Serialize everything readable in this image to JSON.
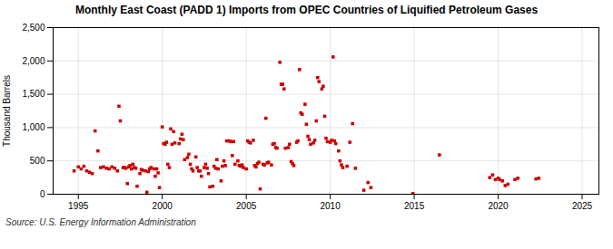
{
  "chart_data": {
    "type": "scatter",
    "title": "Monthly East Coast (PADD 1) Imports from OPEC Countries of Liquified Petroleum Gases",
    "ylabel": "Thousand Barrels",
    "annotation": "Source: U.S. Energy Information Administration",
    "color": "#cc0000",
    "marker": "square",
    "grid": true,
    "xlim": [
      1993.5,
      2026
    ],
    "xticks": [
      1995,
      2000,
      2005,
      2010,
      2015,
      2020,
      2025
    ],
    "ylim": [
      0,
      2500
    ],
    "yticks": [
      0,
      500,
      {
        "value": 1000,
        "label": "1,000"
      },
      {
        "value": 1500,
        "label": "1,500"
      },
      {
        "value": 2000,
        "label": "2,000"
      },
      {
        "value": 2500,
        "label": "2,500"
      }
    ],
    "x": [
      1994.75,
      1995.0,
      1995.17,
      1995.33,
      1995.5,
      1995.67,
      1995.83,
      1996.0,
      1996.17,
      1996.33,
      1996.5,
      1996.67,
      1996.83,
      1997.0,
      1997.17,
      1997.33,
      1997.42,
      1997.5,
      1997.67,
      1997.75,
      1997.83,
      1997.92,
      1998.0,
      1998.08,
      1998.17,
      1998.25,
      1998.33,
      1998.42,
      1998.5,
      1998.67,
      1998.75,
      1998.83,
      1999.0,
      1999.08,
      1999.17,
      1999.25,
      1999.33,
      1999.5,
      1999.58,
      1999.67,
      1999.75,
      1999.83,
      2000.0,
      2000.08,
      2000.17,
      2000.25,
      2000.33,
      2000.42,
      2000.5,
      2000.58,
      2000.67,
      2000.75,
      2001.0,
      2001.08,
      2001.17,
      2001.25,
      2001.33,
      2001.5,
      2001.58,
      2001.67,
      2001.75,
      2001.83,
      2002.0,
      2002.08,
      2002.17,
      2002.25,
      2002.33,
      2002.5,
      2002.58,
      2002.67,
      2002.75,
      2002.83,
      2003.0,
      2003.08,
      2003.17,
      2003.25,
      2003.33,
      2003.5,
      2003.58,
      2003.67,
      2003.75,
      2003.83,
      2004.0,
      2004.08,
      2004.17,
      2004.25,
      2004.33,
      2004.5,
      2004.58,
      2004.67,
      2004.75,
      2004.83,
      2005.0,
      2005.08,
      2005.17,
      2005.25,
      2005.42,
      2005.5,
      2005.58,
      2005.67,
      2005.75,
      2005.83,
      2006.0,
      2006.08,
      2006.17,
      2006.25,
      2006.33,
      2006.5,
      2006.58,
      2006.67,
      2006.75,
      2006.83,
      2007.0,
      2007.08,
      2007.17,
      2007.25,
      2007.33,
      2007.5,
      2007.58,
      2007.67,
      2007.75,
      2007.83,
      2008.0,
      2008.08,
      2008.17,
      2008.25,
      2008.33,
      2008.5,
      2008.58,
      2008.67,
      2008.75,
      2008.83,
      2009.0,
      2009.08,
      2009.17,
      2009.25,
      2009.33,
      2009.5,
      2009.58,
      2009.67,
      2009.75,
      2009.83,
      2010.0,
      2010.08,
      2010.17,
      2010.25,
      2010.33,
      2010.5,
      2010.58,
      2010.67,
      2010.75,
      2011.0,
      2011.17,
      2011.33,
      2011.5,
      2012.0,
      2012.25,
      2012.42,
      2014.92,
      2016.5,
      2019.5,
      2019.67,
      2019.83,
      2020.0,
      2020.08,
      2020.25,
      2020.42,
      2020.58,
      2021.0,
      2021.17,
      2022.25,
      2022.42
    ],
    "values": [
      350,
      410,
      380,
      420,
      350,
      330,
      310,
      950,
      650,
      400,
      410,
      390,
      380,
      410,
      390,
      350,
      1320,
      1100,
      400,
      400,
      390,
      160,
      410,
      430,
      380,
      450,
      400,
      390,
      120,
      310,
      370,
      360,
      350,
      30,
      340,
      380,
      400,
      380,
      270,
      380,
      320,
      100,
      1010,
      760,
      750,
      780,
      450,
      400,
      980,
      750,
      940,
      770,
      760,
      830,
      900,
      820,
      520,
      550,
      600,
      450,
      380,
      350,
      560,
      400,
      350,
      350,
      270,
      400,
      450,
      390,
      310,
      110,
      120,
      420,
      390,
      520,
      380,
      200,
      420,
      500,
      430,
      800,
      800,
      790,
      580,
      790,
      450,
      500,
      430,
      420,
      440,
      400,
      380,
      800,
      780,
      770,
      810,
      430,
      410,
      460,
      480,
      80,
      450,
      440,
      1140,
      470,
      480,
      440,
      750,
      760,
      700,
      690,
      1980,
      1650,
      1650,
      1580,
      690,
      700,
      750,
      490,
      460,
      430,
      780,
      800,
      1870,
      1220,
      1200,
      1350,
      1050,
      870,
      820,
      750,
      770,
      810,
      1100,
      1750,
      1690,
      1580,
      1620,
      1170,
      840,
      790,
      780,
      810,
      2060,
      800,
      760,
      650,
      500,
      440,
      400,
      420,
      780,
      1060,
      390,
      60,
      175,
      100,
      10,
      590,
      250,
      290,
      220,
      240,
      220,
      200,
      130,
      150,
      220,
      240,
      230,
      240
    ]
  }
}
